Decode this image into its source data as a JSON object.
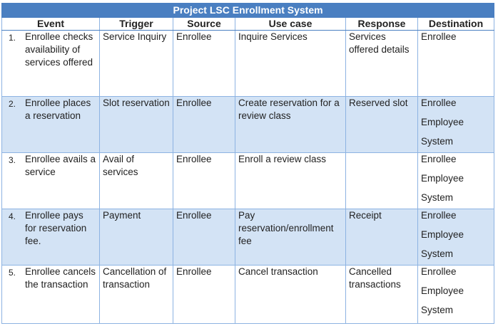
{
  "title": "Project LSC Enrollment System",
  "columns": [
    "Event",
    "Trigger",
    "Source",
    "Use case",
    "Response",
    "Destination"
  ],
  "rows": [
    {
      "num": "1.",
      "event": "Enrollee checks availability of services offered",
      "trigger": "Service Inquiry",
      "source": "Enrollee",
      "use_case": "Inquire Services",
      "response": "Services offered details",
      "destination": [
        "Enrollee"
      ]
    },
    {
      "num": "2.",
      "event": "Enrollee places a reservation",
      "trigger": "Slot reservation",
      "source": "Enrollee",
      "use_case": "Create reservation for a review class",
      "response": "Reserved slot",
      "destination": [
        "Enrollee",
        "Employee",
        "System"
      ]
    },
    {
      "num": "3.",
      "event": "Enrollee avails a service",
      "trigger": "Avail of services",
      "source": "Enrollee",
      "use_case": "Enroll a review class",
      "response": "",
      "destination": [
        "Enrollee",
        "Employee",
        "System"
      ]
    },
    {
      "num": "4.",
      "event": "Enrollee pays for reservation fee.",
      "trigger": "Payment",
      "source": "Enrollee",
      "use_case": "Pay reservation/enrollment fee",
      "response": "Receipt",
      "destination": [
        "Enrollee",
        "Employee",
        "System"
      ]
    },
    {
      "num": "5.",
      "event": "Enrollee cancels the transaction",
      "trigger": "Cancellation of transaction",
      "source": "Enrollee",
      "use_case": "Cancel transaction",
      "response": "Cancelled transactions",
      "destination": [
        "Enrollee",
        "Employee",
        "System"
      ]
    }
  ]
}
